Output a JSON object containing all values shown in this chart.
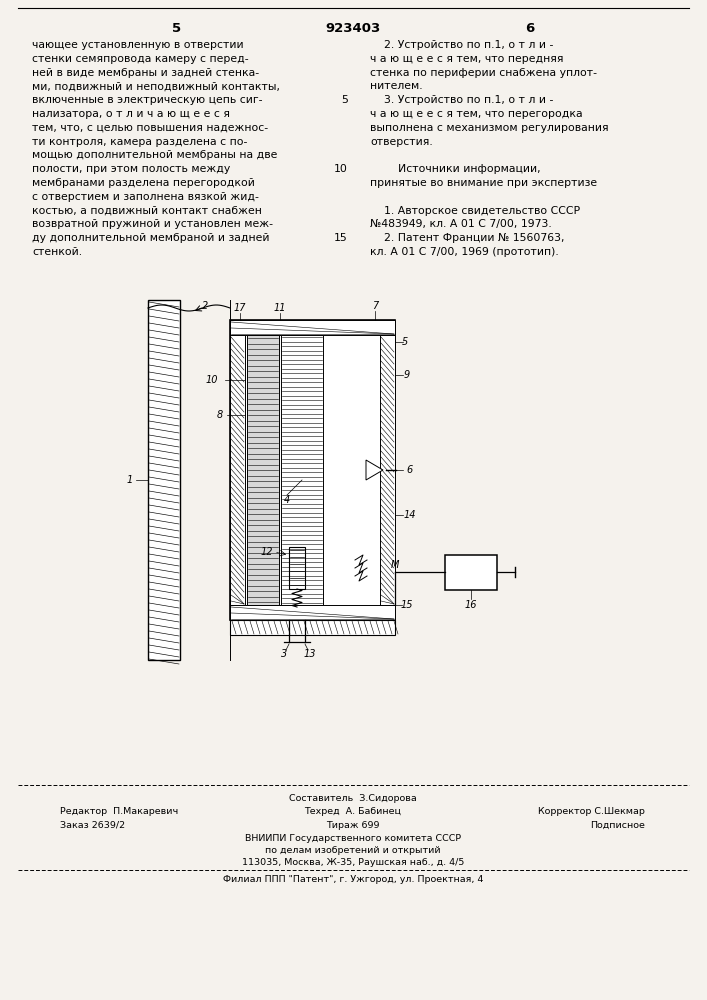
{
  "bg_color": "#f5f2ed",
  "text_color": "#1a1a1a",
  "page_number_left": "5",
  "page_number_center": "923403",
  "page_number_right": "6",
  "col_left_lines": [
    "чающее установленную в отверстии",
    "стенки семяпровода камеру с перед-",
    "ней в виде мембраны и задней стенка-",
    "ми, подвижный и неподвижный контакты,",
    "включенные в электрическую цепь сиг-",
    "нализатора, о т л и ч а ю щ е е с я",
    "тем, что, с целью повышения надежнос-",
    "ти контроля, камера разделена с по-",
    "мощью дополнительной мембраны на две",
    "полости, при этом полость между",
    "мембранами разделена перегородкой",
    "с отверстием и заполнена вязкой жид-",
    "костью, а подвижный контакт снабжен",
    "возвратной пружиной и установлен меж-",
    "ду дополнительной мембраной и задней",
    "стенкой."
  ],
  "lineno_5_row": 4,
  "lineno_10_row": 9,
  "lineno_15_row": 14,
  "col_right_lines": [
    "    2. Устройство по п.1, о т л и -",
    "ч а ю щ е е с я тем, что передняя",
    "стенка по периферии снабжена уплот-",
    "нителем.",
    "    3. Устройство по п.1, о т л и -",
    "ч а ю щ е е с я тем, что перегородка",
    "выполнена с механизмом регулирования",
    "отверстия.",
    "",
    "        Источники информации,",
    "принятые во внимание при экспертизе",
    "",
    "    1. Авторское свидетельство СССР",
    "№483949, кл. А 01 С 7/00, 1973.",
    "    2. Патент Франции № 1560763,",
    "кл. А 01 С 7/00, 1969 (прототип)."
  ],
  "footer_composer": "Составитель  З.Сидорова",
  "footer_editor": "Редактор  П.Макаревич",
  "footer_techred": "Техред  А. Бабинец",
  "footer_corrector": "Корректор С.Шекмар",
  "footer_order": "Заказ 2639/2",
  "footer_tirazh": "Тираж 699",
  "footer_podpisnoe": "Подписное",
  "footer_vniipи": "ВНИИПИ Государственного комитета СССР",
  "footer_po_delam": "по делам изобретений и открытий",
  "footer_address": "113035, Москва, Ж-35, Раушская наб., д. 4/5",
  "footer_filial": "Филиал ППП \"Патент\", г. Ужгород, ул. Проектная, 4"
}
